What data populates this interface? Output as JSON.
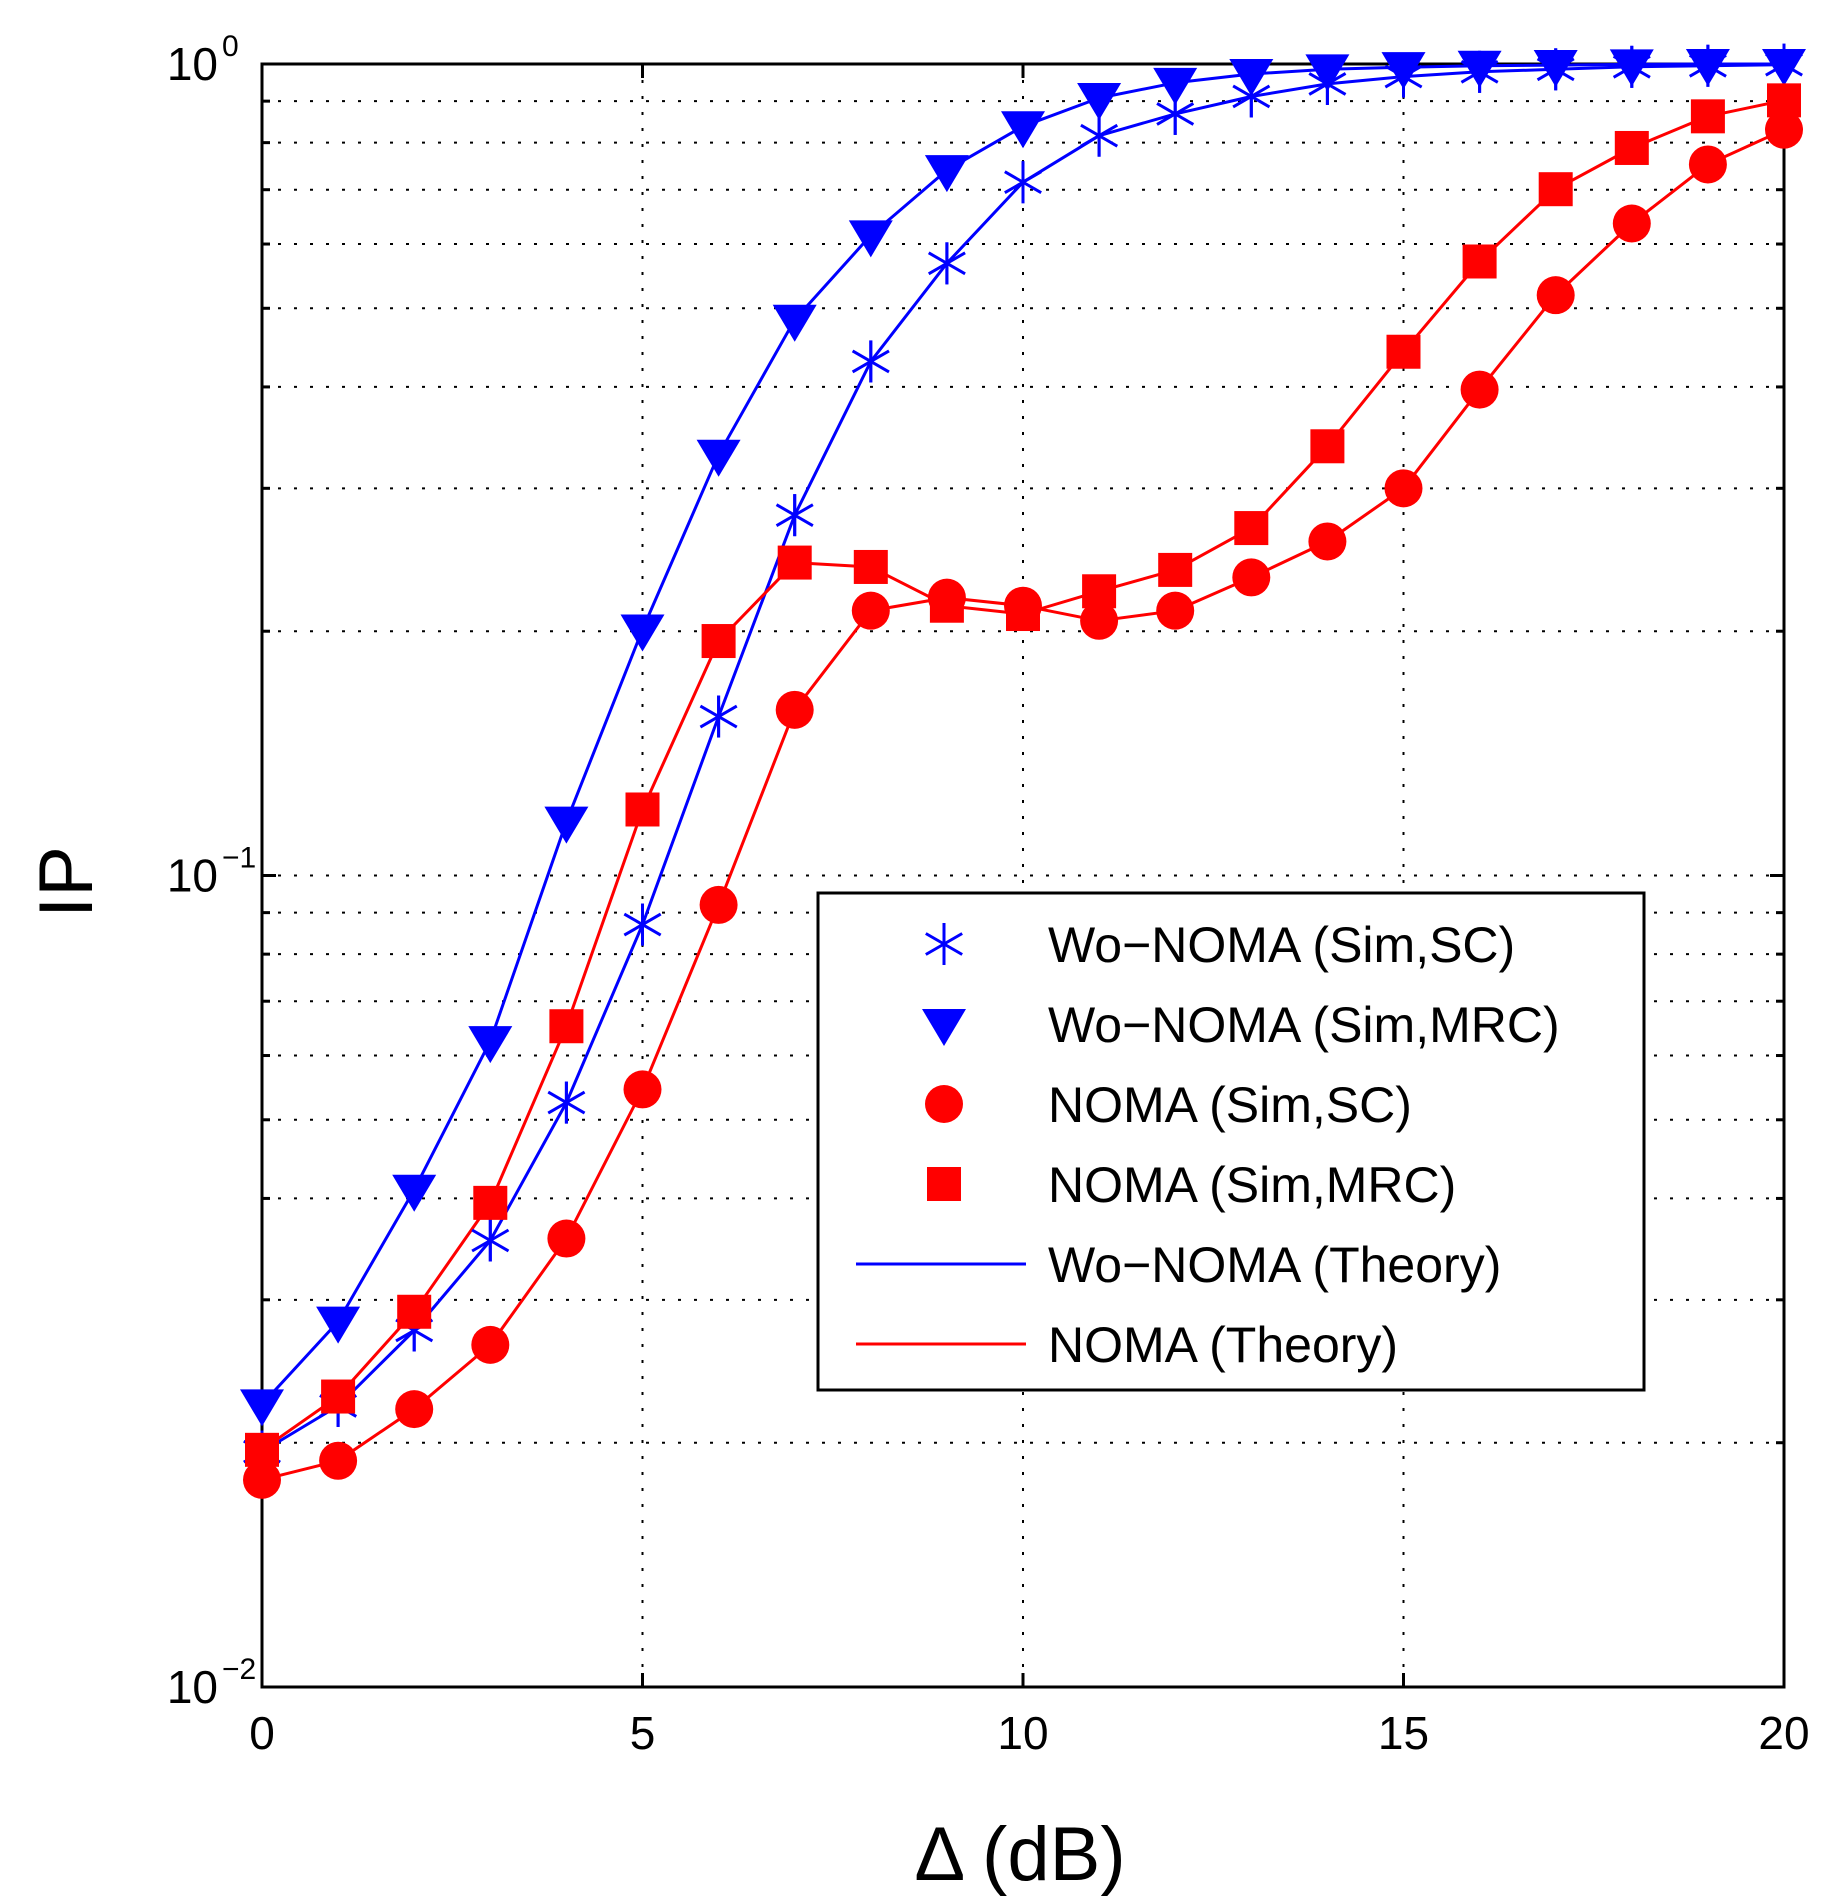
{
  "chart_data": {
    "type": "line",
    "title": "",
    "xlabel": "Δ (dB)",
    "ylabel": "IP",
    "xlim": [
      0,
      20
    ],
    "ylim": [
      0.01,
      1
    ],
    "yscale": "log",
    "grid": true,
    "xticks": [
      0,
      5,
      10,
      15,
      20
    ],
    "xtick_labels": [
      "0",
      "5",
      "10",
      "15",
      "20"
    ],
    "yticks": [
      {
        "value": 1,
        "base": "10",
        "exp": "0"
      },
      {
        "value": 0.1,
        "base": "10",
        "exp": "−1"
      },
      {
        "value": 0.01,
        "base": "10",
        "exp": "−2"
      }
    ],
    "x": [
      0,
      1,
      2,
      3,
      4,
      5,
      6,
      7,
      8,
      9,
      10,
      11,
      12,
      13,
      14,
      15,
      16,
      17,
      18,
      19,
      20
    ],
    "series": [
      {
        "name": "Wo−NOMA (Sim,SC)",
        "color": "#0000ff",
        "marker": "asterisk",
        "values": [
          0.0195,
          0.0222,
          0.0275,
          0.0355,
          0.0525,
          0.087,
          0.157,
          0.278,
          0.43,
          0.568,
          0.715,
          0.816,
          0.868,
          0.912,
          0.945,
          0.965,
          0.978,
          0.985,
          0.992,
          0.995,
          0.998
        ]
      },
      {
        "name": "Wo−NOMA (Sim,MRC)",
        "color": "#0000ff",
        "marker": "triangle-down",
        "values": [
          0.0223,
          0.0282,
          0.041,
          0.0625,
          0.1165,
          0.201,
          0.33,
          0.484,
          0.615,
          0.74,
          0.838,
          0.908,
          0.948,
          0.972,
          0.985,
          0.991,
          0.995,
          0.997,
          0.999,
          1.0,
          1.0
        ]
      },
      {
        "name": "NOMA (Sim,SC)",
        "color": "#ff0000",
        "marker": "circle",
        "values": [
          0.018,
          0.019,
          0.022,
          0.0264,
          0.0357,
          0.0545,
          0.092,
          0.16,
          0.212,
          0.22,
          0.215,
          0.206,
          0.212,
          0.233,
          0.258,
          0.3,
          0.397,
          0.519,
          0.636,
          0.752,
          0.83
        ]
      },
      {
        "name": "NOMA (Sim,MRC)",
        "color": "#ff0000",
        "marker": "square",
        "values": [
          0.0196,
          0.0228,
          0.029,
          0.0395,
          0.0652,
          0.1206,
          0.1945,
          0.243,
          0.24,
          0.215,
          0.21,
          0.224,
          0.238,
          0.268,
          0.338,
          0.442,
          0.571,
          0.701,
          0.788,
          0.862,
          0.902
        ]
      }
    ],
    "theory": [
      {
        "name": "Wo−NOMA (Theory)",
        "color": "#0000ff",
        "follows": [
          "Wo−NOMA (Sim,SC)",
          "Wo−NOMA (Sim,MRC)"
        ]
      },
      {
        "name": "NOMA (Theory)",
        "color": "#ff0000",
        "follows": [
          "NOMA (Sim,SC)",
          "NOMA (Sim,MRC)"
        ]
      }
    ],
    "legend": {
      "position": "center-right",
      "entries": [
        {
          "label": "Wo−NOMA (Sim,SC)",
          "color": "#0000ff",
          "marker": "asterisk"
        },
        {
          "label": "Wo−NOMA (Sim,MRC)",
          "color": "#0000ff",
          "marker": "triangle-down"
        },
        {
          "label": "NOMA (Sim,SC)",
          "color": "#ff0000",
          "marker": "circle"
        },
        {
          "label": "NOMA (Sim,MRC)",
          "color": "#ff0000",
          "marker": "square"
        },
        {
          "label": "Wo−NOMA (Theory)",
          "color": "#0000ff",
          "marker": "line"
        },
        {
          "label": "NOMA (Theory)",
          "color": "#ff0000",
          "marker": "line"
        }
      ]
    }
  }
}
